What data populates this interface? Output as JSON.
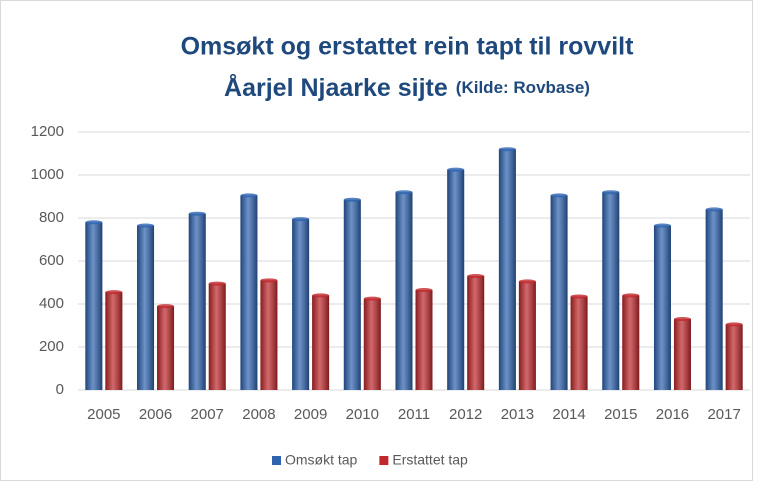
{
  "chart_data": {
    "type": "bar",
    "title": "Omsøkt og erstattet rein tapt til rovvilt",
    "subtitle": "Åarjel Njaarke sijte",
    "source_note": "(Kilde: Rovbase)",
    "categories": [
      "2005",
      "2006",
      "2007",
      "2008",
      "2009",
      "2010",
      "2011",
      "2012",
      "2013",
      "2014",
      "2015",
      "2016",
      "2017"
    ],
    "series": [
      {
        "name": "Omsøkt tap",
        "color": "#2e63b0",
        "values": [
          780,
          765,
          820,
          905,
          795,
          885,
          920,
          1025,
          1120,
          905,
          920,
          765,
          840
        ]
      },
      {
        "name": "Erstattet tap",
        "color": "#c0282c",
        "values": [
          455,
          390,
          495,
          510,
          440,
          425,
          465,
          530,
          505,
          435,
          440,
          330,
          305
        ]
      }
    ],
    "ylim": [
      0,
      1200
    ],
    "yticks": [
      0,
      200,
      400,
      600,
      800,
      1000,
      1200
    ],
    "grid": true,
    "legend": "bottom"
  }
}
